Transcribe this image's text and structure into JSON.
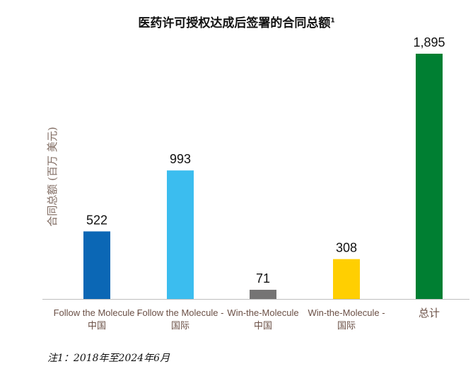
{
  "chart_data": {
    "type": "bar",
    "title": "医药许可授权达成后签署的合同总额",
    "title_superscript": "1",
    "ylabel": "合同总额 (百万 美元)",
    "xlabel": "",
    "ylim": [
      0,
      1895
    ],
    "categories": [
      [
        "Follow the Molecule -",
        "中国"
      ],
      [
        "Follow the Molecule -",
        "国际"
      ],
      [
        "Win-the-Molecule",
        "中国"
      ],
      [
        "Win-the-Molecule -",
        "国际"
      ],
      [
        "总计"
      ]
    ],
    "values": [
      522,
      993,
      71,
      308,
      1895
    ],
    "data_labels": [
      "522",
      "993",
      "71",
      "308",
      "1,895"
    ],
    "colors": [
      "#0B67B5",
      "#3BBDEF",
      "#757474",
      "#FFCF01",
      "#007F32"
    ],
    "grid": false,
    "footnote": "注1：2018年至2024年6月"
  },
  "style": {
    "axis_line_color": "#BFBFBF",
    "ylabel_color": "#7F6A60",
    "category_label_color": "#6B5046",
    "data_label_color": "#111111"
  }
}
